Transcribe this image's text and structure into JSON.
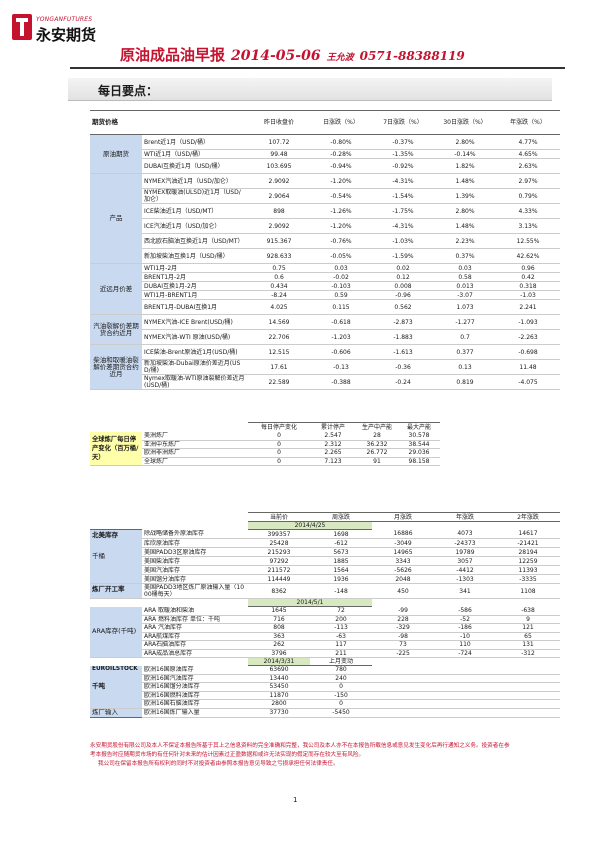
{
  "header": {
    "logo_en": "YONGANFUTURES",
    "logo_cn": "永安期货",
    "title": "原油成品油早报",
    "date": "2014-05-06",
    "author": "王允波",
    "phone": "0571-88388119"
  },
  "section_title": "每日要点：",
  "t1": {
    "corner": "期货价格",
    "cols": [
      "昨日收盘价",
      "日涨跌（%）",
      "7日涨跌（%）",
      "30日涨跌（%）",
      "年涨跌（%）"
    ],
    "groups": [
      {
        "name": "原油期货",
        "rows": [
          [
            "Brent近1月（USD/桶）",
            "107.72",
            "-0.80%",
            "-0.37%",
            "2.80%",
            "4.77%"
          ],
          [
            "WTI近1月（USD/桶）",
            "99.48",
            "-0.28%",
            "-1.35%",
            "-0.14%",
            "4.65%"
          ],
          [
            "DUBAI互换近1月（USD/桶）",
            "103.695",
            "-0.94%",
            "-0.92%",
            "1.82%",
            "2.63%"
          ]
        ]
      },
      {
        "name": "产品",
        "rows": [
          [
            "NYMEX汽油近1月（USD/加仑）",
            "2.9092",
            "-1.20%",
            "-4.31%",
            "1.48%",
            "2.97%"
          ],
          [
            "NYMEX取暖油(ULSD)近1月（USD/加仑）",
            "2.9064",
            "-0.54%",
            "-1.54%",
            "1.39%",
            "0.79%"
          ],
          [
            "ICE柴油近1月（USD/MT）",
            "898",
            "-1.26%",
            "-1.75%",
            "2.80%",
            "4.33%"
          ],
          [
            "ICE汽油近1月（USD/加仑）",
            "2.9092",
            "-1.20%",
            "-4.31%",
            "1.48%",
            "3.13%"
          ],
          [
            "西北欧石脑油互换近1月（USD/MT）",
            "915.367",
            "-0.76%",
            "-1.03%",
            "2.23%",
            "12.55%"
          ],
          [
            "新加坡柴油互换1月（USD/桶）",
            "928.633",
            "-0.05%",
            "-1.59%",
            "0.37%",
            "42.62%"
          ]
        ]
      },
      {
        "name": "近远月价差",
        "rows": [
          [
            "WTI1月-2月",
            "0.75",
            "0.03",
            "0.02",
            "0.03",
            "0.96"
          ],
          [
            "BRENT1月-2月",
            "0.6",
            "-0.02",
            "0.12",
            "0.58",
            "0.42"
          ],
          [
            "DUBAI互换1月-2月",
            "0.434",
            "-0.103",
            "0.008",
            "0.013",
            "0.318"
          ],
          [
            "WTI1月-BRENT1月",
            "-8.24",
            "0.59",
            "-0.96",
            "-3.07",
            "-1.03"
          ],
          [
            "BRENT1月-DUBAI互换1月",
            "4.025",
            "0.115",
            "0.562",
            "1.073",
            "2.241"
          ]
        ]
      },
      {
        "name": "汽油裂解价差期货合约近月",
        "rows": [
          [
            "NYMEX汽油-ICE Brent(USD/桶)",
            "14.569",
            "-0.618",
            "-2.873",
            "-1.277",
            "-1.093"
          ],
          [
            "NYMEX汽油-WTI 原油(USD/桶)",
            "22.706",
            "-1.203",
            "-1.883",
            "0.7",
            "-2.263"
          ]
        ]
      },
      {
        "name": "柴油和取暖油裂解价差期货合约近月",
        "rows": [
          [
            "ICE柴油-Brent原油近1月(USD/桶)",
            "12.515",
            "-0.606",
            "-1.613",
            "0.377",
            "-0.698"
          ],
          [
            "新加坡柴油-Dubai原油价差近月(USD/桶)",
            "17.61",
            "-0.13",
            "-0.36",
            "0.13",
            "11.48"
          ],
          [
            "Nymex取暖油-WTI原油裂解价差近月(USD/桶)",
            "22.589",
            "-0.388",
            "-0.24",
            "0.819",
            "-4.075"
          ]
        ]
      }
    ]
  },
  "t2": {
    "cols": [
      "每日停产变化",
      "累计停产",
      "生产中产能",
      "最大产能"
    ],
    "group": "全球炼厂每日停产变化（百万桶/天）",
    "rows": [
      [
        "美洲炼厂",
        "0",
        "2.547",
        "28",
        "30.578"
      ],
      [
        "亚洲中东炼厂",
        "0",
        "2.312",
        "36.232",
        "38.544"
      ],
      [
        "欧洲非洲炼厂",
        "0",
        "2.265",
        "26.772",
        "29.036"
      ],
      [
        "全球炼厂",
        "0",
        "7.123",
        "91",
        "98.158"
      ]
    ]
  },
  "t3": {
    "cols": [
      "当前价",
      "周涨跌",
      "月涨跌",
      "年涨跌",
      "2年涨跌"
    ],
    "date": "2014/4/25",
    "blocks": [
      {
        "name": "北美库存",
        "sub": "千桶",
        "rows": [
          [
            "除战略储备外原油库存",
            "399357",
            "1698",
            "16886",
            "4073",
            "14617"
          ],
          [
            "库欣原油库存",
            "25428",
            "-612",
            "-3049",
            "-24373",
            "-21421"
          ],
          [
            "美国PADD3区原油库存",
            "215293",
            "5673",
            "14965",
            "19789",
            "28194"
          ],
          [
            "美国柴油库存",
            "97292",
            "1885",
            "3343",
            "3057",
            "12259"
          ],
          [
            "美国汽油库存",
            "211572",
            "1564",
            "-5626",
            "-4412",
            "11393"
          ],
          [
            "美国馏分油库存",
            "114449",
            "1936",
            "2048",
            "-1303",
            "-3335"
          ]
        ]
      },
      {
        "name": "炼厂开工率",
        "rows": [
          [
            "美国PADD3地区炼厂原油输入量（1000桶每天）",
            "8362",
            "-148",
            "450",
            "341",
            "1108"
          ]
        ]
      }
    ],
    "date2": "2014/5/1",
    "ara_name": "ARA库存(千吨)",
    "ara_rows": [
      [
        "ARA 取暖油和柴油",
        "1645",
        "72",
        "-99",
        "-586",
        "-638"
      ],
      [
        "ARA 燃料油库存 单位：千吨",
        "716",
        "200",
        "228",
        "-52",
        "9"
      ],
      [
        "ARA 汽油库存",
        "808",
        "-113",
        "-329",
        "-186",
        "121"
      ],
      [
        "ARA航煤库存",
        "363",
        "-63",
        "-98",
        "-10",
        "65"
      ],
      [
        "ARA石脑油库存",
        "262",
        "117",
        "73",
        "110",
        "131"
      ],
      [
        "ARA成品油总库存",
        "3796",
        "211",
        "-225",
        "-724",
        "-312"
      ]
    ],
    "date3": "2014/3/31",
    "col_mom": "上月变动",
    "eu_name": "EUROILSTOCK",
    "eu_sub": "千吨",
    "eu_rows": [
      [
        "欧洲16国原油库存",
        "63690",
        "780"
      ],
      [
        "欧洲16国汽油库存",
        "13440",
        "240"
      ],
      [
        "欧洲16国馏分油库存",
        "53450",
        "0"
      ],
      [
        "欧洲16国燃料油库存",
        "11870",
        "-150"
      ],
      [
        "欧洲16国石脑油库存",
        "2800",
        "0"
      ]
    ],
    "eu_ref_name": "炼厂输入",
    "eu_ref_row": [
      "欧洲16国炼厂输入量",
      "37730",
      "-5450"
    ]
  },
  "footer": {
    "p1": "永安期货股份有限公司及本人不保证本报告所基于其上之信息资料的完全准确和完整，我公司及本人亦不在本报告所载信息或意见发生变化后再行通知之义务。投资者在参考本报告时应随期货市场的有任何针对未来的估计因素过正盈数据和或许无法实现的假定而存在较大至有风险。",
    "p2": "我公司在保留本报告所有权利的同时不对投资者由参照本报告意见导致之亏损承担任何法律责任。"
  },
  "page_number": "1"
}
